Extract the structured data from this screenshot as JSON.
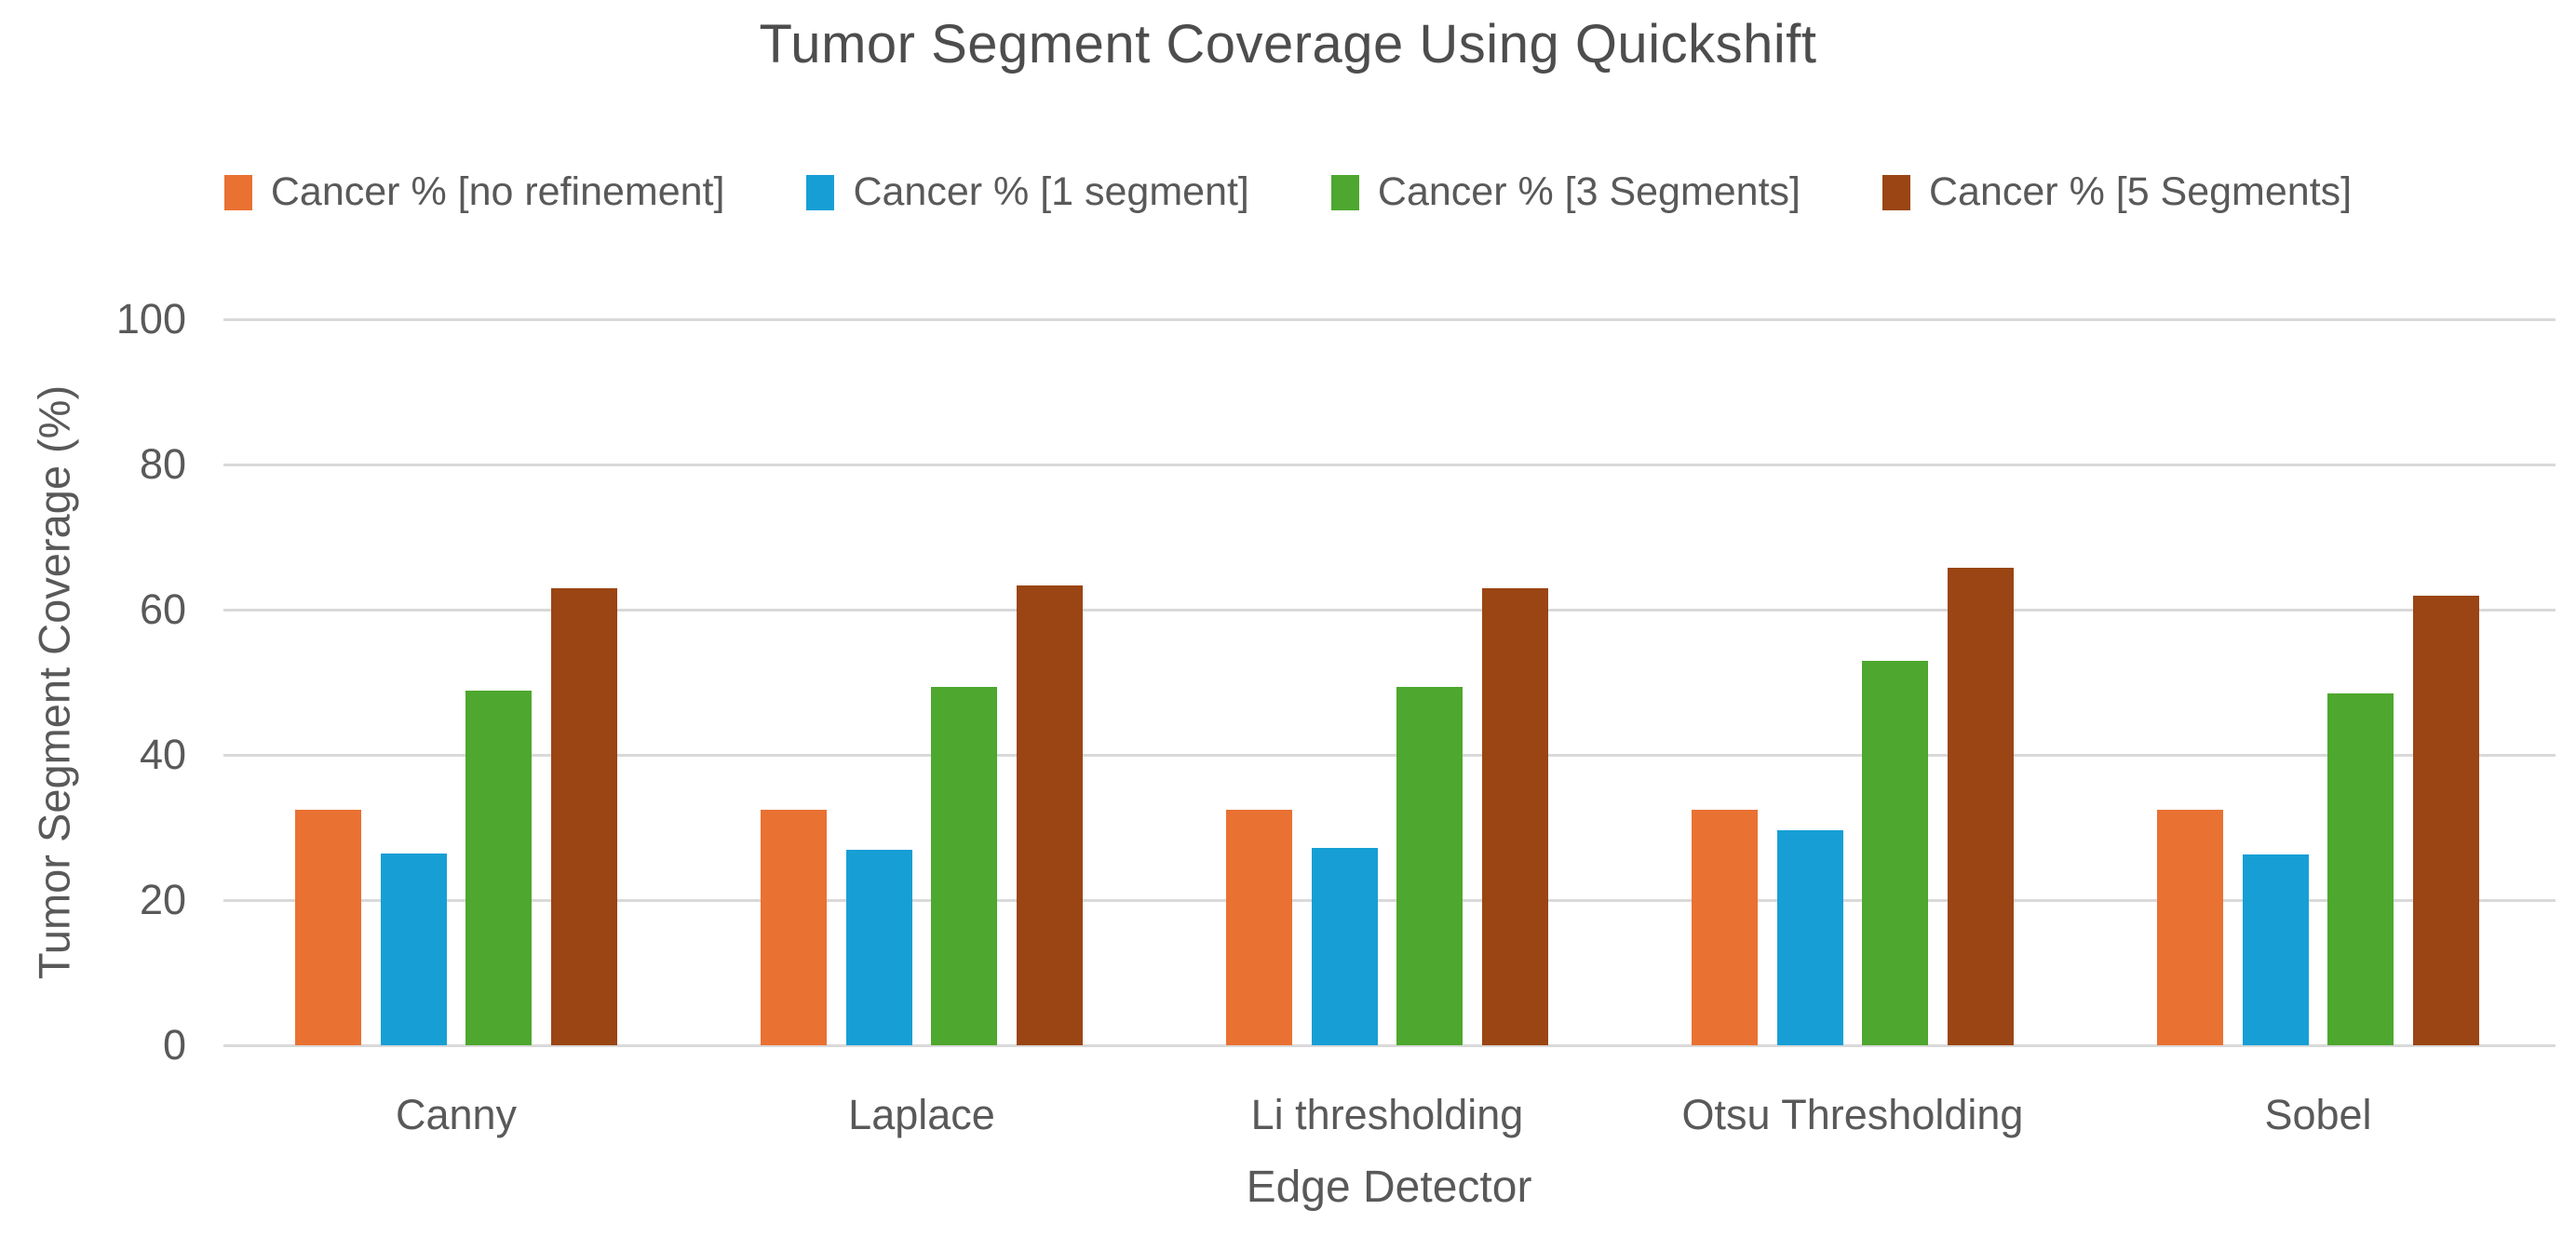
{
  "chart_data": {
    "type": "bar",
    "title": "Tumor Segment Coverage Using Quickshift",
    "xlabel": "Edge Detector",
    "ylabel": "Tumor Segment Coverage (%)",
    "categories": [
      "Canny",
      "Laplace",
      "Li thresholding",
      "Otsu Thresholding",
      "Sobel"
    ],
    "series": [
      {
        "name": "Cancer % [no refinement]",
        "color": "#E97132",
        "values": [
          32.4,
          32.4,
          32.4,
          32.4,
          32.4
        ]
      },
      {
        "name": "Cancer % [1 segment]",
        "color": "#179FD5",
        "values": [
          26.4,
          26.9,
          27.2,
          29.6,
          26.3
        ]
      },
      {
        "name": "Cancer % [3 Segments]",
        "color": "#4EA72E",
        "values": [
          48.9,
          49.3,
          49.3,
          52.9,
          48.4
        ]
      },
      {
        "name": "Cancer % [5 Segments]",
        "color": "#9A4513",
        "values": [
          62.9,
          63.3,
          62.9,
          65.8,
          61.9
        ]
      }
    ],
    "ylim": [
      0,
      100
    ],
    "yticks": [
      0,
      20,
      40,
      60,
      80,
      100
    ],
    "grid": true,
    "gridline_color": "#D9D9D9",
    "legend_position": "top",
    "text_color": "#595959"
  }
}
